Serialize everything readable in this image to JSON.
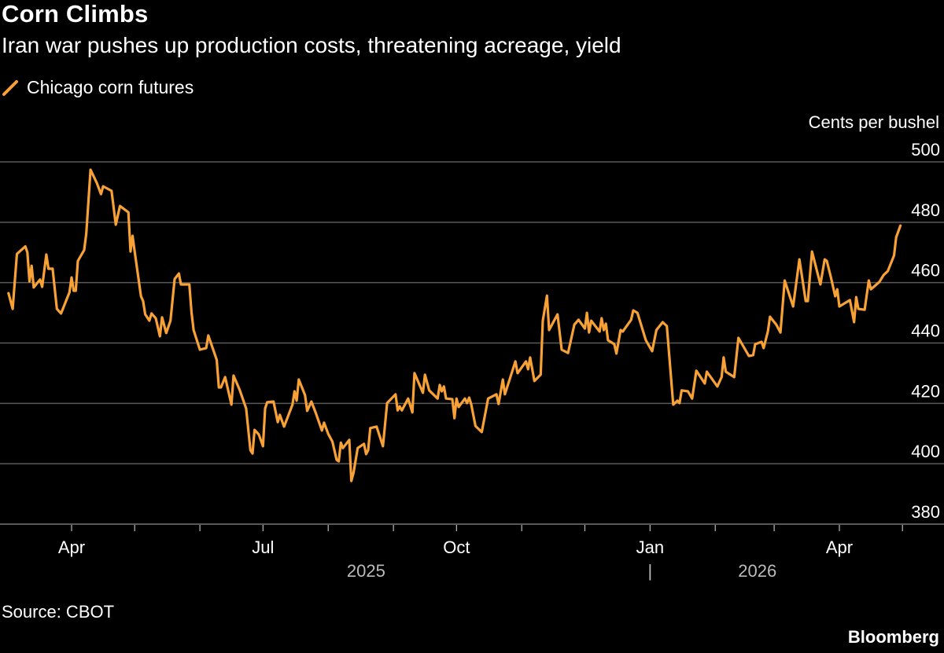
{
  "header": {
    "title": "Corn Climbs",
    "subtitle": "Iran war pushes up production costs, threatening acreage, yield"
  },
  "footer": {
    "source": "Source: CBOT",
    "logo": "Bloomberg"
  },
  "colors": {
    "line": "#f7a136",
    "grid": "#5a5a5a",
    "background": "#000000"
  },
  "chart_data": {
    "type": "line",
    "title": "Corn Climbs",
    "subtitle": "Iran war pushes up production costs, threatening acreage, yield",
    "ylabel": "Cents per bushel",
    "ylim": [
      380,
      500
    ],
    "yticks": [
      380,
      400,
      420,
      440,
      460,
      480,
      500
    ],
    "ytick_labels": [
      "380",
      "400",
      "420",
      "440",
      "460",
      "480",
      "500"
    ],
    "xlim": [
      "2025-02-26",
      "2026-05-25"
    ],
    "xticks": [
      {
        "date": "2025-04-01",
        "label": "Apr"
      },
      {
        "date": "2025-05-01",
        "label": ""
      },
      {
        "date": "2025-06-01",
        "label": ""
      },
      {
        "date": "2025-07-01",
        "label": "Jul"
      },
      {
        "date": "2025-08-01",
        "label": ""
      },
      {
        "date": "2025-09-01",
        "label": ""
      },
      {
        "date": "2025-10-01",
        "label": "Oct"
      },
      {
        "date": "2025-11-01",
        "label": ""
      },
      {
        "date": "2025-12-01",
        "label": ""
      },
      {
        "date": "2026-01-01",
        "label": "Jan"
      },
      {
        "date": "2026-02-01",
        "label": ""
      },
      {
        "date": "2026-03-01",
        "label": ""
      },
      {
        "date": "2026-04-01",
        "label": "Apr"
      },
      {
        "date": "2026-05-01",
        "label": ""
      }
    ],
    "year_labels": [
      {
        "label": "2025",
        "date": "2025-08-19"
      },
      {
        "label": "2026",
        "date": "2026-02-21"
      }
    ],
    "year_separator": {
      "label": "|",
      "date": "2026-01-01"
    },
    "grid": true,
    "legend": "top-left",
    "series": [
      {
        "name": "Chicago corn futures",
        "data": [
          [
            "2025-03-02",
            456.5
          ],
          [
            "2025-03-04",
            451.3
          ],
          [
            "2025-03-06",
            469.5
          ],
          [
            "2025-03-10",
            472
          ],
          [
            "2025-03-11",
            470
          ],
          [
            "2025-03-12",
            460.4
          ],
          [
            "2025-03-13",
            465.6
          ],
          [
            "2025-03-14",
            458.4
          ],
          [
            "2025-03-17",
            461
          ],
          [
            "2025-03-18",
            458.6
          ],
          [
            "2025-03-20",
            469.3
          ],
          [
            "2025-03-21",
            464.6
          ],
          [
            "2025-03-23",
            464.6
          ],
          [
            "2025-03-25",
            451.3
          ],
          [
            "2025-03-27",
            449.8
          ],
          [
            "2025-03-31",
            456.8
          ],
          [
            "2025-04-01",
            461.7
          ],
          [
            "2025-04-02",
            457.3
          ],
          [
            "2025-04-03",
            457.3
          ],
          [
            "2025-04-04",
            467.2
          ],
          [
            "2025-04-07",
            470.8
          ],
          [
            "2025-04-08",
            476.3
          ],
          [
            "2025-04-10",
            497.4
          ],
          [
            "2025-04-13",
            493
          ],
          [
            "2025-04-15",
            489.3
          ],
          [
            "2025-04-16",
            491.9
          ],
          [
            "2025-04-20",
            490.4
          ],
          [
            "2025-04-22",
            479.2
          ],
          [
            "2025-04-24",
            485.4
          ],
          [
            "2025-04-28",
            483.3
          ],
          [
            "2025-04-29",
            470.3
          ],
          [
            "2025-04-30",
            475.5
          ],
          [
            "2025-05-01",
            470.3
          ],
          [
            "2025-05-04",
            455.5
          ],
          [
            "2025-05-05",
            453.9
          ],
          [
            "2025-05-06",
            449.5
          ],
          [
            "2025-05-08",
            447.4
          ],
          [
            "2025-05-09",
            449.8
          ],
          [
            "2025-05-11",
            448.2
          ],
          [
            "2025-05-13",
            442.2
          ],
          [
            "2025-05-14",
            448.5
          ],
          [
            "2025-05-16",
            443.3
          ],
          [
            "2025-05-18",
            447.4
          ],
          [
            "2025-05-20",
            461.2
          ],
          [
            "2025-05-22",
            463
          ],
          [
            "2025-05-23",
            459.4
          ],
          [
            "2025-05-27",
            459.4
          ],
          [
            "2025-05-28",
            450.3
          ],
          [
            "2025-05-29",
            444.3
          ],
          [
            "2025-06-01",
            437.8
          ],
          [
            "2025-06-04",
            438.3
          ],
          [
            "2025-06-05",
            442.5
          ],
          [
            "2025-06-09",
            434.4
          ],
          [
            "2025-06-10",
            425.3
          ],
          [
            "2025-06-11",
            425.3
          ],
          [
            "2025-06-13",
            428.7
          ],
          [
            "2025-06-16",
            419.6
          ],
          [
            "2025-06-17",
            429.2
          ],
          [
            "2025-06-20",
            424.3
          ],
          [
            "2025-06-23",
            418.3
          ],
          [
            "2025-06-25",
            404.5
          ],
          [
            "2025-06-26",
            403.4
          ],
          [
            "2025-06-27",
            411.2
          ],
          [
            "2025-06-29",
            409.7
          ],
          [
            "2025-07-01",
            405.8
          ],
          [
            "2025-07-02",
            418.3
          ],
          [
            "2025-07-03",
            420.4
          ],
          [
            "2025-07-06",
            420.6
          ],
          [
            "2025-07-08",
            413.8
          ],
          [
            "2025-07-09",
            416.2
          ],
          [
            "2025-07-11",
            412.3
          ],
          [
            "2025-07-15",
            419.6
          ],
          [
            "2025-07-16",
            424
          ],
          [
            "2025-07-17",
            420.9
          ],
          [
            "2025-07-18",
            427.9
          ],
          [
            "2025-07-21",
            422.7
          ],
          [
            "2025-07-22",
            417.5
          ],
          [
            "2025-07-24",
            420.6
          ],
          [
            "2025-07-26",
            417
          ],
          [
            "2025-07-29",
            411
          ],
          [
            "2025-07-30",
            413.6
          ],
          [
            "2025-08-01",
            409.9
          ],
          [
            "2025-08-03",
            407.3
          ],
          [
            "2025-08-05",
            401.3
          ],
          [
            "2025-08-06",
            400.8
          ],
          [
            "2025-08-07",
            407
          ],
          [
            "2025-08-08",
            405.2
          ],
          [
            "2025-08-11",
            407.9
          ],
          [
            "2025-08-12",
            394.3
          ],
          [
            "2025-08-13",
            396.9
          ],
          [
            "2025-08-15",
            405.2
          ],
          [
            "2025-08-18",
            406.6
          ],
          [
            "2025-08-19",
            403.2
          ],
          [
            "2025-08-20",
            404.5
          ],
          [
            "2025-08-21",
            411.8
          ],
          [
            "2025-08-24",
            412.3
          ],
          [
            "2025-08-27",
            405.8
          ],
          [
            "2025-08-29",
            420.1
          ],
          [
            "2025-09-02",
            423
          ],
          [
            "2025-09-03",
            417.7
          ],
          [
            "2025-09-04",
            419
          ],
          [
            "2025-09-05",
            417.7
          ],
          [
            "2025-09-08",
            421.6
          ],
          [
            "2025-09-10",
            417
          ],
          [
            "2025-09-11",
            430
          ],
          [
            "2025-09-15",
            423.5
          ],
          [
            "2025-09-16",
            429.5
          ],
          [
            "2025-09-18",
            424.3
          ],
          [
            "2025-09-22",
            421.6
          ],
          [
            "2025-09-23",
            426.1
          ],
          [
            "2025-09-24",
            424
          ],
          [
            "2025-09-25",
            425.6
          ],
          [
            "2025-09-26",
            421.6
          ],
          [
            "2025-09-29",
            421.4
          ],
          [
            "2025-09-30",
            415.1
          ],
          [
            "2025-10-01",
            421.6
          ],
          [
            "2025-10-02",
            418.8
          ],
          [
            "2025-10-05",
            421.6
          ],
          [
            "2025-10-06",
            420.1
          ],
          [
            "2025-10-07",
            421.9
          ],
          [
            "2025-10-08",
            419.6
          ],
          [
            "2025-10-10",
            412.5
          ],
          [
            "2025-10-13",
            410.5
          ],
          [
            "2025-10-16",
            421.6
          ],
          [
            "2025-10-20",
            423
          ],
          [
            "2025-10-21",
            419.8
          ],
          [
            "2025-10-23",
            427.9
          ],
          [
            "2025-10-24",
            423
          ],
          [
            "2025-10-29",
            433.9
          ],
          [
            "2025-10-30",
            430
          ],
          [
            "2025-11-03",
            433.9
          ],
          [
            "2025-11-04",
            431.3
          ],
          [
            "2025-11-05",
            435.2
          ],
          [
            "2025-11-07",
            427.4
          ],
          [
            "2025-11-10",
            429.5
          ],
          [
            "2025-11-11",
            447.4
          ],
          [
            "2025-11-13",
            455.7
          ],
          [
            "2025-11-14",
            444.3
          ],
          [
            "2025-11-18",
            449.5
          ],
          [
            "2025-11-20",
            437.8
          ],
          [
            "2025-11-23",
            436.7
          ],
          [
            "2025-11-26",
            446.1
          ],
          [
            "2025-11-28",
            447.7
          ],
          [
            "2025-12-01",
            444.8
          ],
          [
            "2025-12-02",
            450
          ],
          [
            "2025-12-03",
            443.5
          ],
          [
            "2025-12-04",
            447.4
          ],
          [
            "2025-12-08",
            443.8
          ],
          [
            "2025-12-09",
            448.2
          ],
          [
            "2025-12-10",
            444.3
          ],
          [
            "2025-12-11",
            446.4
          ],
          [
            "2025-12-12",
            440.9
          ],
          [
            "2025-12-15",
            439.6
          ],
          [
            "2025-12-16",
            436.5
          ],
          [
            "2025-12-18",
            444.3
          ],
          [
            "2025-12-19",
            443.8
          ],
          [
            "2025-12-23",
            447.7
          ],
          [
            "2025-12-24",
            450.8
          ],
          [
            "2025-12-26",
            450
          ],
          [
            "2025-12-30",
            440.9
          ],
          [
            "2026-01-02",
            437.3
          ],
          [
            "2026-01-04",
            444.3
          ],
          [
            "2026-01-07",
            446.9
          ],
          [
            "2026-01-09",
            445.6
          ],
          [
            "2026-01-12",
            419.6
          ],
          [
            "2026-01-14",
            420.9
          ],
          [
            "2026-01-15",
            420.1
          ],
          [
            "2026-01-16",
            424.3
          ],
          [
            "2026-01-19",
            424
          ],
          [
            "2026-01-21",
            421.6
          ],
          [
            "2026-01-23",
            430.8
          ],
          [
            "2026-01-27",
            426.6
          ],
          [
            "2026-01-28",
            430.5
          ],
          [
            "2026-02-02",
            425.6
          ],
          [
            "2026-02-04",
            428.7
          ],
          [
            "2026-02-05",
            435.2
          ],
          [
            "2026-02-06",
            430.5
          ],
          [
            "2026-02-10",
            428.7
          ],
          [
            "2026-02-12",
            441.7
          ],
          [
            "2026-02-17",
            435.7
          ],
          [
            "2026-02-19",
            436
          ],
          [
            "2026-02-20",
            439.6
          ],
          [
            "2026-02-23",
            440.4
          ],
          [
            "2026-02-24",
            438.3
          ],
          [
            "2026-02-26",
            443.8
          ],
          [
            "2026-02-27",
            448.7
          ],
          [
            "2026-03-02",
            446.1
          ],
          [
            "2026-03-04",
            443.5
          ],
          [
            "2026-03-06",
            460.7
          ],
          [
            "2026-03-10",
            452.1
          ],
          [
            "2026-03-13",
            467.7
          ],
          [
            "2026-03-16",
            453.9
          ],
          [
            "2026-03-17",
            453.9
          ],
          [
            "2026-03-19",
            470.3
          ],
          [
            "2026-03-23",
            459.4
          ],
          [
            "2026-03-25",
            467.7
          ],
          [
            "2026-03-26",
            467.2
          ],
          [
            "2026-03-28",
            461.7
          ],
          [
            "2026-03-30",
            455.5
          ],
          [
            "2026-03-31",
            457.8
          ],
          [
            "2026-04-01",
            452.1
          ],
          [
            "2026-04-06",
            454.2
          ],
          [
            "2026-04-08",
            446.9
          ],
          [
            "2026-04-09",
            455.2
          ],
          [
            "2026-04-10",
            451.3
          ],
          [
            "2026-04-13",
            451
          ],
          [
            "2026-04-15",
            460.7
          ],
          [
            "2026-04-16",
            457.8
          ],
          [
            "2026-04-20",
            460.2
          ],
          [
            "2026-04-22",
            462.5
          ],
          [
            "2026-04-24",
            463.8
          ],
          [
            "2026-04-27",
            469
          ],
          [
            "2026-04-28",
            475
          ],
          [
            "2026-04-30",
            478.9
          ]
        ]
      }
    ]
  }
}
